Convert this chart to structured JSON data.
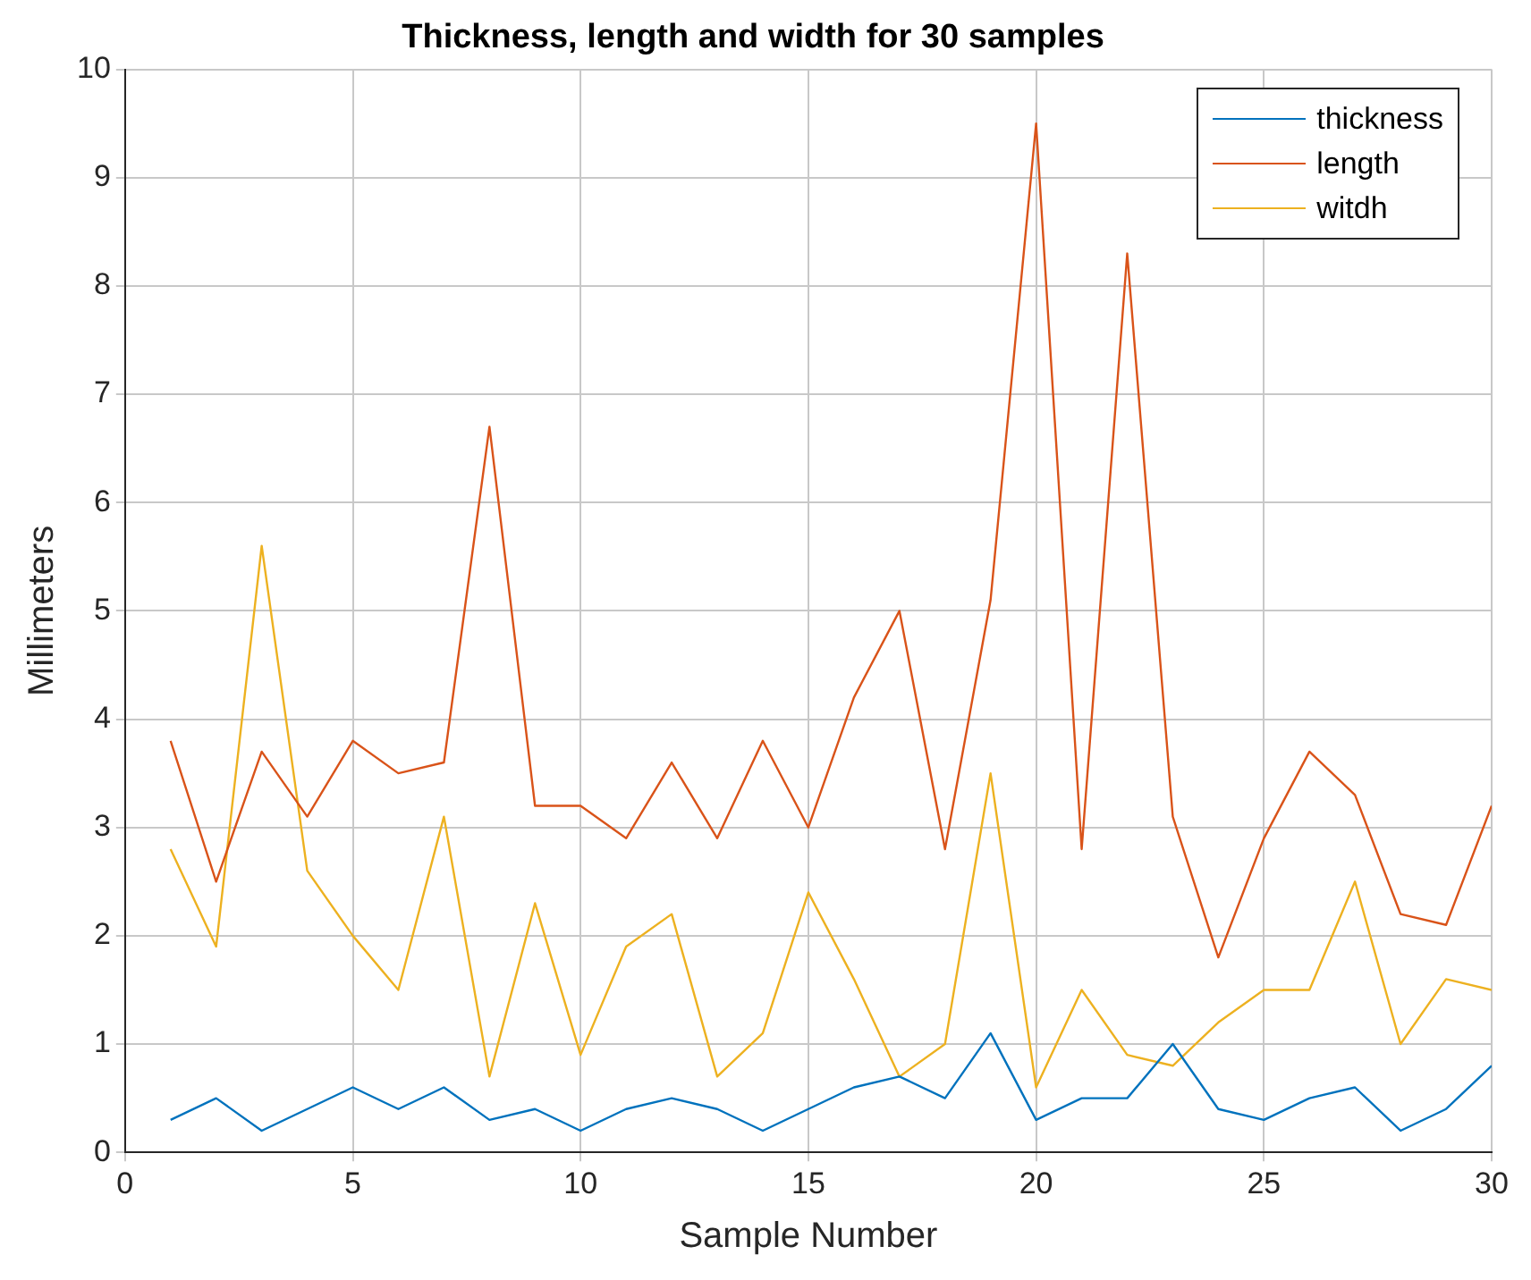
{
  "chart_data": {
    "type": "line",
    "title": "Thickness, length and width for 30 samples",
    "xlabel": "Sample Number",
    "ylabel": "Millimeters",
    "x": [
      1,
      2,
      3,
      4,
      5,
      6,
      7,
      8,
      9,
      10,
      11,
      12,
      13,
      14,
      15,
      16,
      17,
      18,
      19,
      20,
      21,
      22,
      23,
      24,
      25,
      26,
      27,
      28,
      29,
      30
    ],
    "series": [
      {
        "name": "thickness",
        "color": "#0072bd",
        "values": [
          0.3,
          0.5,
          0.2,
          0.4,
          0.6,
          0.4,
          0.6,
          0.3,
          0.4,
          0.2,
          0.4,
          0.5,
          0.4,
          0.2,
          0.4,
          0.6,
          0.7,
          0.5,
          1.1,
          0.3,
          0.5,
          0.5,
          1.0,
          0.4,
          0.3,
          0.5,
          0.6,
          0.2,
          0.4,
          0.8
        ]
      },
      {
        "name": "length",
        "color": "#d95319",
        "values": [
          3.8,
          2.5,
          3.7,
          3.1,
          3.8,
          3.5,
          3.6,
          6.7,
          3.2,
          3.2,
          2.9,
          3.6,
          2.9,
          3.8,
          3.0,
          4.2,
          5.0,
          2.8,
          5.1,
          9.5,
          2.8,
          8.3,
          3.1,
          1.8,
          2.9,
          3.7,
          3.3,
          2.2,
          2.1,
          3.2
        ]
      },
      {
        "name": "witdh",
        "color": "#edb120",
        "values": [
          2.8,
          1.9,
          5.6,
          2.6,
          2.0,
          1.5,
          3.1,
          0.7,
          2.3,
          0.9,
          1.9,
          2.2,
          0.7,
          1.1,
          2.4,
          1.6,
          0.7,
          1.0,
          3.5,
          0.6,
          1.5,
          0.9,
          0.8,
          1.2,
          1.5,
          1.5,
          2.5,
          1.0,
          1.6,
          1.5
        ]
      }
    ],
    "xlim": [
      0,
      30
    ],
    "xticks": [
      0,
      5,
      10,
      15,
      20,
      25,
      30
    ],
    "ylim": [
      0,
      10
    ],
    "yticks": [
      0,
      1,
      2,
      3,
      4,
      5,
      6,
      7,
      8,
      9,
      10
    ],
    "grid": true,
    "legend": "top right",
    "marker": "none",
    "line_style": "solid"
  }
}
